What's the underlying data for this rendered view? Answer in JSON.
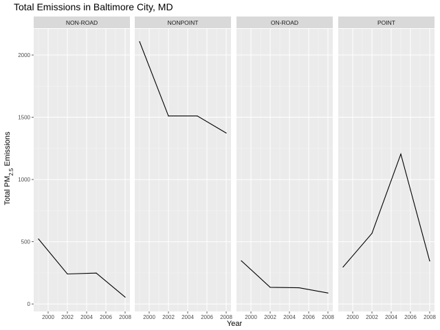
{
  "chart_data": {
    "type": "line",
    "title": "Total Emissions in Baltimore City, MD",
    "xlabel": "Year",
    "ylabel": {
      "prefix": "Total PM",
      "subscript": "2.5",
      "suffix": " Emissions"
    },
    "x": [
      1999,
      2002,
      2005,
      2008
    ],
    "xlim": [
      1998.5,
      2008.5
    ],
    "ylim": [
      -60,
      2210
    ],
    "x_ticks": [
      "2000",
      "2002",
      "2004",
      "2006",
      "2008"
    ],
    "y_ticks": [
      "0",
      "500",
      "1000",
      "1500",
      "2000"
    ],
    "grid": true,
    "facets": [
      {
        "name": "NON-ROAD",
        "values": [
          522,
          241,
          248,
          55
        ]
      },
      {
        "name": "NONPOINT",
        "values": [
          2108,
          1510,
          1510,
          1373
        ]
      },
      {
        "name": "ON-ROAD",
        "values": [
          347,
          134,
          130,
          88
        ]
      },
      {
        "name": "POINT",
        "values": [
          297,
          567,
          1204,
          345
        ]
      }
    ],
    "colors": {
      "panel_bg": "#ebebeb",
      "strip_bg": "#d9d9d9",
      "grid_major": "#ffffff",
      "line": "#000000"
    }
  }
}
